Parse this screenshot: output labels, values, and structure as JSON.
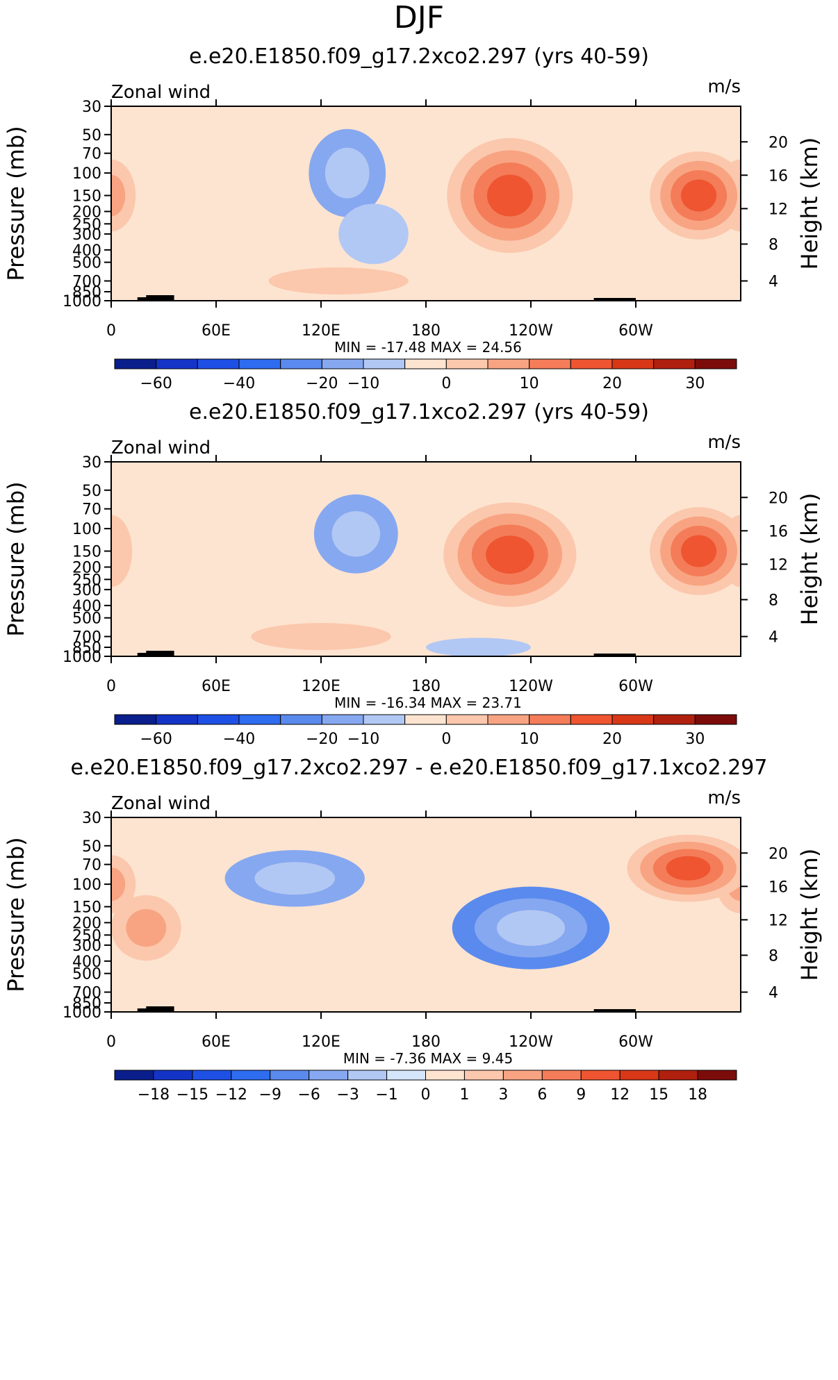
{
  "page_title": "DJF",
  "plot_label": "Zonal wind",
  "units": "m/s",
  "y_label": "Pressure (mb)",
  "y2_label": "Height (km)",
  "chart_data": [
    {
      "type": "contour",
      "title": "e.e20.E1850.f09_g17.2xco2.297 (yrs 40-59)",
      "x_ticks": [
        {
          "lon": 0,
          "label": "0"
        },
        {
          "lon": 60,
          "label": "60E"
        },
        {
          "lon": 120,
          "label": "120E"
        },
        {
          "lon": 180,
          "label": "180"
        },
        {
          "lon": 240,
          "label": "120W"
        },
        {
          "lon": 300,
          "label": "60W"
        }
      ],
      "minmax_label": "MIN = -17.48  MAX =  24.56",
      "min": -17.48,
      "max": 24.56,
      "levels": [
        -70,
        -60,
        -50,
        -40,
        -30,
        -20,
        -10,
        -5,
        0,
        5,
        10,
        15,
        20,
        25,
        30,
        35
      ],
      "colorbar_labels": [
        {
          "value": -60,
          "label": "−60"
        },
        {
          "value": -40,
          "label": "−40"
        },
        {
          "value": -20,
          "label": "−20"
        },
        {
          "value": -10,
          "label": "−10"
        },
        {
          "value": 0,
          "label": "0"
        },
        {
          "value": 10,
          "label": "10"
        },
        {
          "value": 20,
          "label": "20"
        },
        {
          "value": 30,
          "label": "30"
        }
      ],
      "features": [
        {
          "lon": 0,
          "p": 150,
          "value": 15,
          "width_lon": 14,
          "width_p": 150
        },
        {
          "lon": 135,
          "p": 100,
          "value": -16,
          "width_lon": 22,
          "width_p": 120
        },
        {
          "lon": 150,
          "p": 300,
          "value": -6,
          "width_lon": 20,
          "width_p": 250
        },
        {
          "lon": 228,
          "p": 150,
          "value": 24.5,
          "width_lon": 36,
          "width_p": 220
        },
        {
          "lon": 336,
          "p": 150,
          "value": 24.5,
          "width_lon": 28,
          "width_p": 180
        },
        {
          "lon": 130,
          "p": 700,
          "value": 8,
          "width_lon": 40,
          "width_p": 200
        }
      ]
    },
    {
      "type": "contour",
      "title": "e.e20.E1850.f09_g17.1xco2.297 (yrs 40-59)",
      "x_ticks": [
        {
          "lon": 0,
          "label": "0"
        },
        {
          "lon": 60,
          "label": "60E"
        },
        {
          "lon": 120,
          "label": "120E"
        },
        {
          "lon": 180,
          "label": "180"
        },
        {
          "lon": 240,
          "label": "120W"
        },
        {
          "lon": 300,
          "label": "60W"
        }
      ],
      "minmax_label": "MIN = -16.34  MAX =  23.71",
      "min": -16.34,
      "max": 23.71,
      "levels": [
        -70,
        -60,
        -50,
        -40,
        -30,
        -20,
        -10,
        -5,
        0,
        5,
        10,
        15,
        20,
        25,
        30,
        35
      ],
      "colorbar_labels": [
        {
          "value": -60,
          "label": "−60"
        },
        {
          "value": -40,
          "label": "−40"
        },
        {
          "value": -20,
          "label": "−20"
        },
        {
          "value": -10,
          "label": "−10"
        },
        {
          "value": 0,
          "label": "0"
        },
        {
          "value": 10,
          "label": "10"
        },
        {
          "value": 20,
          "label": "20"
        },
        {
          "value": 30,
          "label": "30"
        }
      ],
      "features": [
        {
          "lon": 0,
          "p": 150,
          "value": 10,
          "width_lon": 12,
          "width_p": 150
        },
        {
          "lon": 140,
          "p": 110,
          "value": -15,
          "width_lon": 24,
          "width_p": 120
        },
        {
          "lon": 228,
          "p": 160,
          "value": 23.5,
          "width_lon": 38,
          "width_p": 220
        },
        {
          "lon": 336,
          "p": 150,
          "value": 23.5,
          "width_lon": 28,
          "width_p": 180
        },
        {
          "lon": 120,
          "p": 700,
          "value": 7,
          "width_lon": 40,
          "width_p": 200
        },
        {
          "lon": 210,
          "p": 850,
          "value": -6,
          "width_lon": 30,
          "width_p": 120
        }
      ]
    },
    {
      "type": "contour",
      "title": "e.e20.E1850.f09_g17.2xco2.297 - e.e20.E1850.f09_g17.1xco2.297",
      "x_ticks": [
        {
          "lon": 0,
          "label": "0"
        },
        {
          "lon": 60,
          "label": "60E"
        },
        {
          "lon": 120,
          "label": "120E"
        },
        {
          "lon": 180,
          "label": "180"
        },
        {
          "lon": 240,
          "label": "120W"
        },
        {
          "lon": 300,
          "label": "60W"
        }
      ],
      "minmax_label": "MIN =  -7.36  MAX =   9.45",
      "min": -7.36,
      "max": 9.45,
      "levels": [
        -21,
        -18,
        -15,
        -12,
        -9,
        -6,
        -3,
        -1,
        0,
        1,
        3,
        6,
        9,
        12,
        15,
        18,
        21
      ],
      "colorbar_labels": [
        {
          "value": -18,
          "label": "−18"
        },
        {
          "value": -15,
          "label": "−15"
        },
        {
          "value": -12,
          "label": "−12"
        },
        {
          "value": -9,
          "label": "−9"
        },
        {
          "value": -6,
          "label": "−6"
        },
        {
          "value": -3,
          "label": "−3"
        },
        {
          "value": -1,
          "label": "−1"
        },
        {
          "value": 0,
          "label": "0"
        },
        {
          "value": 1,
          "label": "1"
        },
        {
          "value": 3,
          "label": "3"
        },
        {
          "value": 6,
          "label": "6"
        },
        {
          "value": 9,
          "label": "9"
        },
        {
          "value": 12,
          "label": "12"
        },
        {
          "value": 15,
          "label": "15"
        },
        {
          "value": 18,
          "label": "18"
        }
      ],
      "features": [
        {
          "lon": 0,
          "p": 100,
          "value": 6,
          "width_lon": 14,
          "width_p": 80
        },
        {
          "lon": 105,
          "p": 90,
          "value": -5,
          "width_lon": 40,
          "width_p": 70
        },
        {
          "lon": 240,
          "p": 220,
          "value": -7.36,
          "width_lon": 45,
          "width_p": 250
        },
        {
          "lon": 330,
          "p": 75,
          "value": 9.45,
          "width_lon": 35,
          "width_p": 70
        },
        {
          "lon": 20,
          "p": 220,
          "value": 4,
          "width_lon": 20,
          "width_p": 200
        }
      ]
    }
  ]
}
